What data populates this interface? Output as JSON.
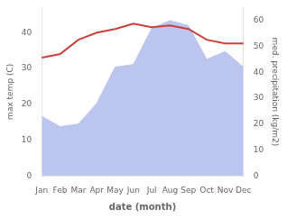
{
  "chart_data": {
    "type": "line",
    "xlabel": "date (month)",
    "ylabel": "max temp (C)",
    "y2label": "med. precipitation (kg/m2)",
    "categories": [
      "Jan",
      "Feb",
      "Mar",
      "Apr",
      "May",
      "Jun",
      "Jul",
      "Aug",
      "Sep",
      "Oct",
      "Nov",
      "Dec"
    ],
    "series": [
      {
        "type": "area",
        "axis": "y2",
        "color": "#bcc5ee",
        "values": [
          23,
          19,
          20,
          28,
          42,
          43,
          57,
          60,
          58,
          45,
          48,
          42
        ]
      },
      {
        "type": "line",
        "color": "#c9403a",
        "values": [
          33,
          34,
          38,
          40,
          41,
          42.5,
          41.5,
          42,
          41,
          38,
          37,
          37
        ]
      }
    ],
    "ylim": [
      0,
      47
    ],
    "yticks": [
      0,
      10,
      20,
      30,
      40
    ],
    "y2lim": [
      0,
      65
    ],
    "y2ticks": [
      0,
      10,
      20,
      30,
      40,
      50,
      60
    ],
    "grid": false
  }
}
